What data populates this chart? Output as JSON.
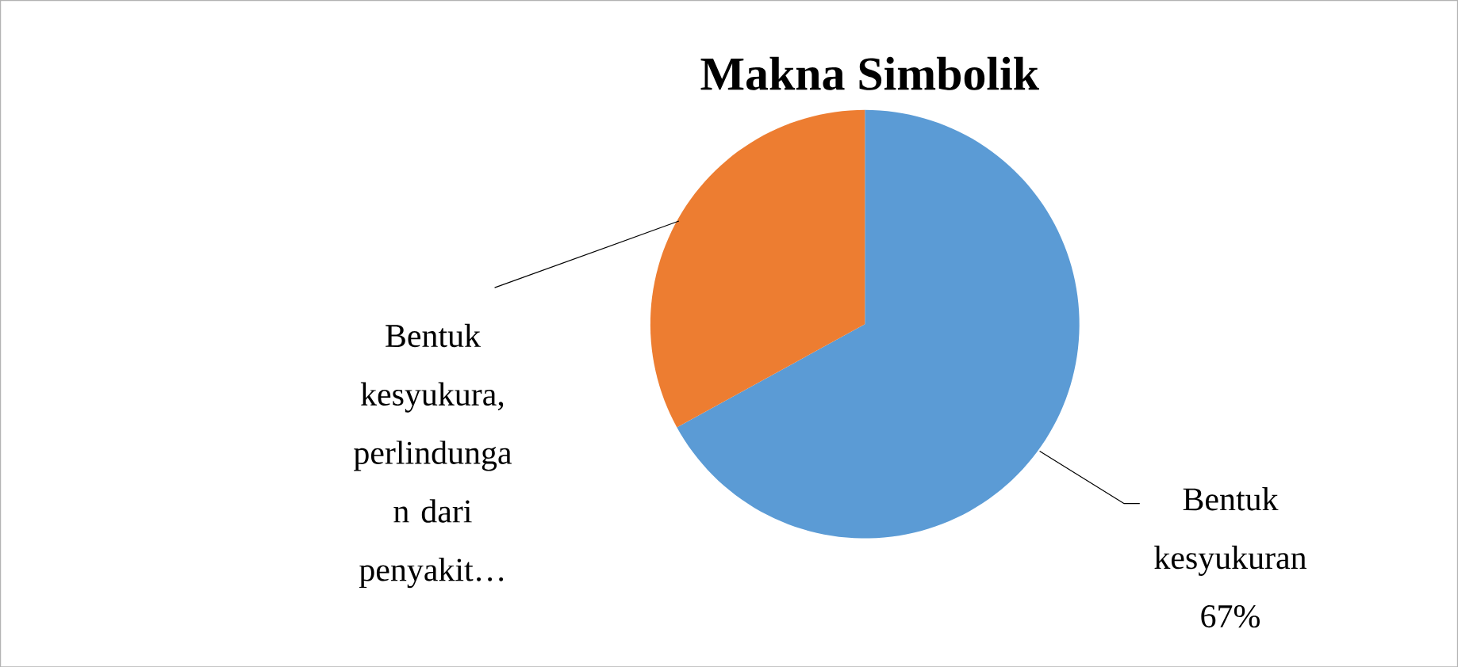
{
  "chart_data": {
    "type": "pie",
    "title": "Makna Simbolik",
    "categories": [
      "Bentuk kesyukuran",
      "Bentuk kesyukura, perlindunga n dari penyakit…"
    ],
    "values": [
      67,
      33
    ],
    "colors": [
      "#5b9bd5",
      "#ed7d31"
    ],
    "value_labels": [
      "67%",
      null
    ]
  }
}
